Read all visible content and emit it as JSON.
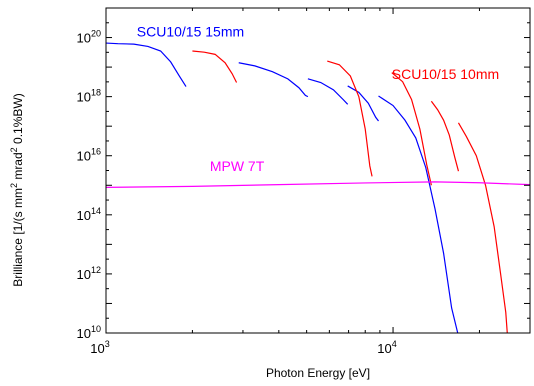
{
  "chart_data": {
    "type": "line",
    "title": "",
    "xlabel": "Photon Energy [eV]",
    "ylabel": "Brilliance [1/(s mm² mrad² 0.1%BW)]",
    "ylabel_parts": {
      "pre": "Brilliance [1/(s mm",
      "sup1": "2",
      "mid": " mrad",
      "sup2": "2",
      "post": " 0.1%BW)"
    },
    "xscale": "log",
    "yscale": "log",
    "xlim": [
      1000,
      30000
    ],
    "ylim": [
      10000000000.0,
      1e+21
    ],
    "grid": false,
    "legend": "none",
    "x_ticks": [
      {
        "value": 1000,
        "base": "10",
        "exp": "3"
      },
      {
        "value": 10000,
        "base": "10",
        "exp": "4"
      }
    ],
    "y_ticks": [
      {
        "value": 10000000000.0,
        "base": "10",
        "exp": "10"
      },
      {
        "value": 1000000000000.0,
        "base": "10",
        "exp": "12"
      },
      {
        "value": 100000000000000.0,
        "base": "10",
        "exp": "14"
      },
      {
        "value": 1e+16,
        "base": "10",
        "exp": "16"
      },
      {
        "value": 1e+18,
        "base": "10",
        "exp": "18"
      },
      {
        "value": 1e+20,
        "base": "10",
        "exp": "20"
      }
    ],
    "annotations": [
      {
        "text": "SCU10/15 15mm",
        "x": 1280,
        "y": 1.1e+20,
        "color": "#0000ff"
      },
      {
        "text": "SCU10/15 10mm",
        "x": 9900,
        "y": 4e+18,
        "color": "#ff0000"
      },
      {
        "text": "MPW 7T",
        "x": 2300,
        "y": 3000000000000000.0,
        "color": "#ff00ff"
      }
    ],
    "series": [
      {
        "color": "#0000ff",
        "segments": [
          [
            [
              1000,
              6.5e+19
            ],
            [
              1100,
              6.2e+19
            ],
            [
              1250,
              6e+19
            ],
            [
              1400,
              5e+19
            ],
            [
              1550,
              3.5e+19
            ],
            [
              1680,
              1.5e+19
            ],
            [
              1800,
              5e+18
            ],
            [
              1900,
              2.2e+18
            ]
          ],
          [
            [
              2900,
              1.4e+19
            ],
            [
              3300,
              1.1e+19
            ],
            [
              3800,
              7e+18
            ],
            [
              4300,
              4e+18
            ],
            [
              4700,
              2e+18
            ],
            [
              4950,
              1.1e+18
            ],
            [
              5050,
              1e+18
            ]
          ],
          [
            [
              5050,
              4e+18
            ],
            [
              5600,
              3e+18
            ],
            [
              6200,
              1.7e+18
            ],
            [
              6700,
              8e+17
            ],
            [
              6950,
              5.5e+17
            ]
          ],
          [
            [
              6950,
              2.3e+18
            ],
            [
              7600,
              1.4e+18
            ],
            [
              8200,
              6e+17
            ],
            [
              8700,
              2e+17
            ],
            [
              8900,
              1.5e+17
            ]
          ],
          [
            [
              8900,
              1.05e+18
            ],
            [
              10000,
              5e+17
            ],
            [
              11000,
              1.6e+17
            ],
            [
              12000,
              4e+16
            ],
            [
              13000,
              4000000000000000.0
            ],
            [
              14000,
              160000000000000.0
            ],
            [
              15000,
              5000000000000.0
            ],
            [
              16000,
              70000000000.0
            ],
            [
              16800,
              10000000000.0
            ]
          ]
        ]
      },
      {
        "color": "#ff0000",
        "segments": [
          [
            [
              2000,
              3.5e+19
            ],
            [
              2200,
              3.2e+19
            ],
            [
              2400,
              2.7e+19
            ],
            [
              2600,
              1.4e+19
            ],
            [
              2750,
              6e+18
            ],
            [
              2850,
              3e+18
            ]
          ],
          [
            [
              5900,
              1.6e+19
            ],
            [
              6500,
              1.2e+19
            ],
            [
              7100,
              5e+18
            ],
            [
              7600,
              1e+18
            ],
            [
              8000,
              8e+16
            ],
            [
              8300,
              4500000000000000.0
            ],
            [
              8450,
              2000000000000000.0
            ]
          ],
          [
            [
              9900,
              6.5e+18
            ],
            [
              10800,
              3.2e+18
            ],
            [
              11600,
              8e+17
            ],
            [
              12400,
              8e+16
            ],
            [
              13100,
              5000000000000000.0
            ],
            [
              13600,
              1000000000000000.0
            ]
          ],
          [
            [
              13600,
              7e+17
            ],
            [
              14300,
              3.6e+17
            ],
            [
              15000,
              1.6e+17
            ],
            [
              15700,
              5e+16
            ],
            [
              16400,
              9000000000000000.0
            ],
            [
              16900,
              3000000000000000.0
            ]
          ],
          [
            [
              16900,
              1.3e+17
            ],
            [
              18000,
              4.5e+16
            ],
            [
              19500,
              1e+16
            ],
            [
              21000,
              1000000000000000.0
            ],
            [
              22500,
              40000000000000.0
            ],
            [
              23700,
              1000000000000.0
            ],
            [
              24700,
              50000000000.0
            ],
            [
              25000,
              10000000000.0
            ]
          ]
        ]
      },
      {
        "color": "#ff00ff",
        "segments": [
          [
            [
              1000,
              850000000000000.0
            ],
            [
              2000,
              920000000000000.0
            ],
            [
              4000,
              1050000000000000.0
            ],
            [
              8000,
              1200000000000000.0
            ],
            [
              14000,
              1300000000000000.0
            ],
            [
              20000,
              1220000000000000.0
            ],
            [
              30000,
              1050000000000000.0
            ]
          ]
        ]
      }
    ]
  }
}
